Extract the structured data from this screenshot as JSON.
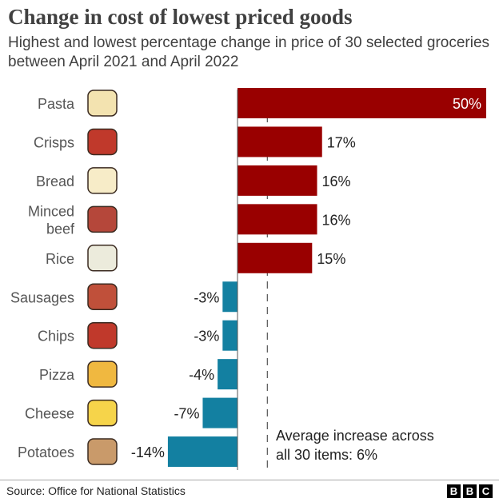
{
  "title": "Change in cost of lowest priced goods",
  "subtitle": "Highest and lowest percentage change in price of 30 selected groceries between April 2021 and April 2022",
  "source": "Source: Office for National Statistics",
  "logo": "BBC",
  "chart_data": {
    "type": "bar",
    "orientation": "horizontal",
    "categories": [
      "Pasta",
      "Crisps",
      "Bread",
      "Minced beef",
      "Rice",
      "Sausages",
      "Chips",
      "Pizza",
      "Cheese",
      "Potatoes"
    ],
    "values": [
      50,
      17,
      16,
      16,
      15,
      -3,
      -3,
      -4,
      -7,
      -14
    ],
    "labels": [
      "50%",
      "17%",
      "16%",
      "16%",
      "15%",
      "-3%",
      "-3%",
      "-4%",
      "-7%",
      "-14%"
    ],
    "icons": [
      "pasta-icon",
      "crisps-icon",
      "bread-icon",
      "minced-beef-icon",
      "rice-icon",
      "sausages-icon",
      "chips-icon",
      "pizza-icon",
      "cheese-icon",
      "potatoes-icon"
    ],
    "colors": {
      "positive": "#990000",
      "negative": "#1380a1"
    },
    "reference_line": {
      "value": 6,
      "label": "Average increase across all 30 items: 6%",
      "style": "dashed"
    },
    "xlim": [
      -14,
      50
    ],
    "grid": false
  }
}
